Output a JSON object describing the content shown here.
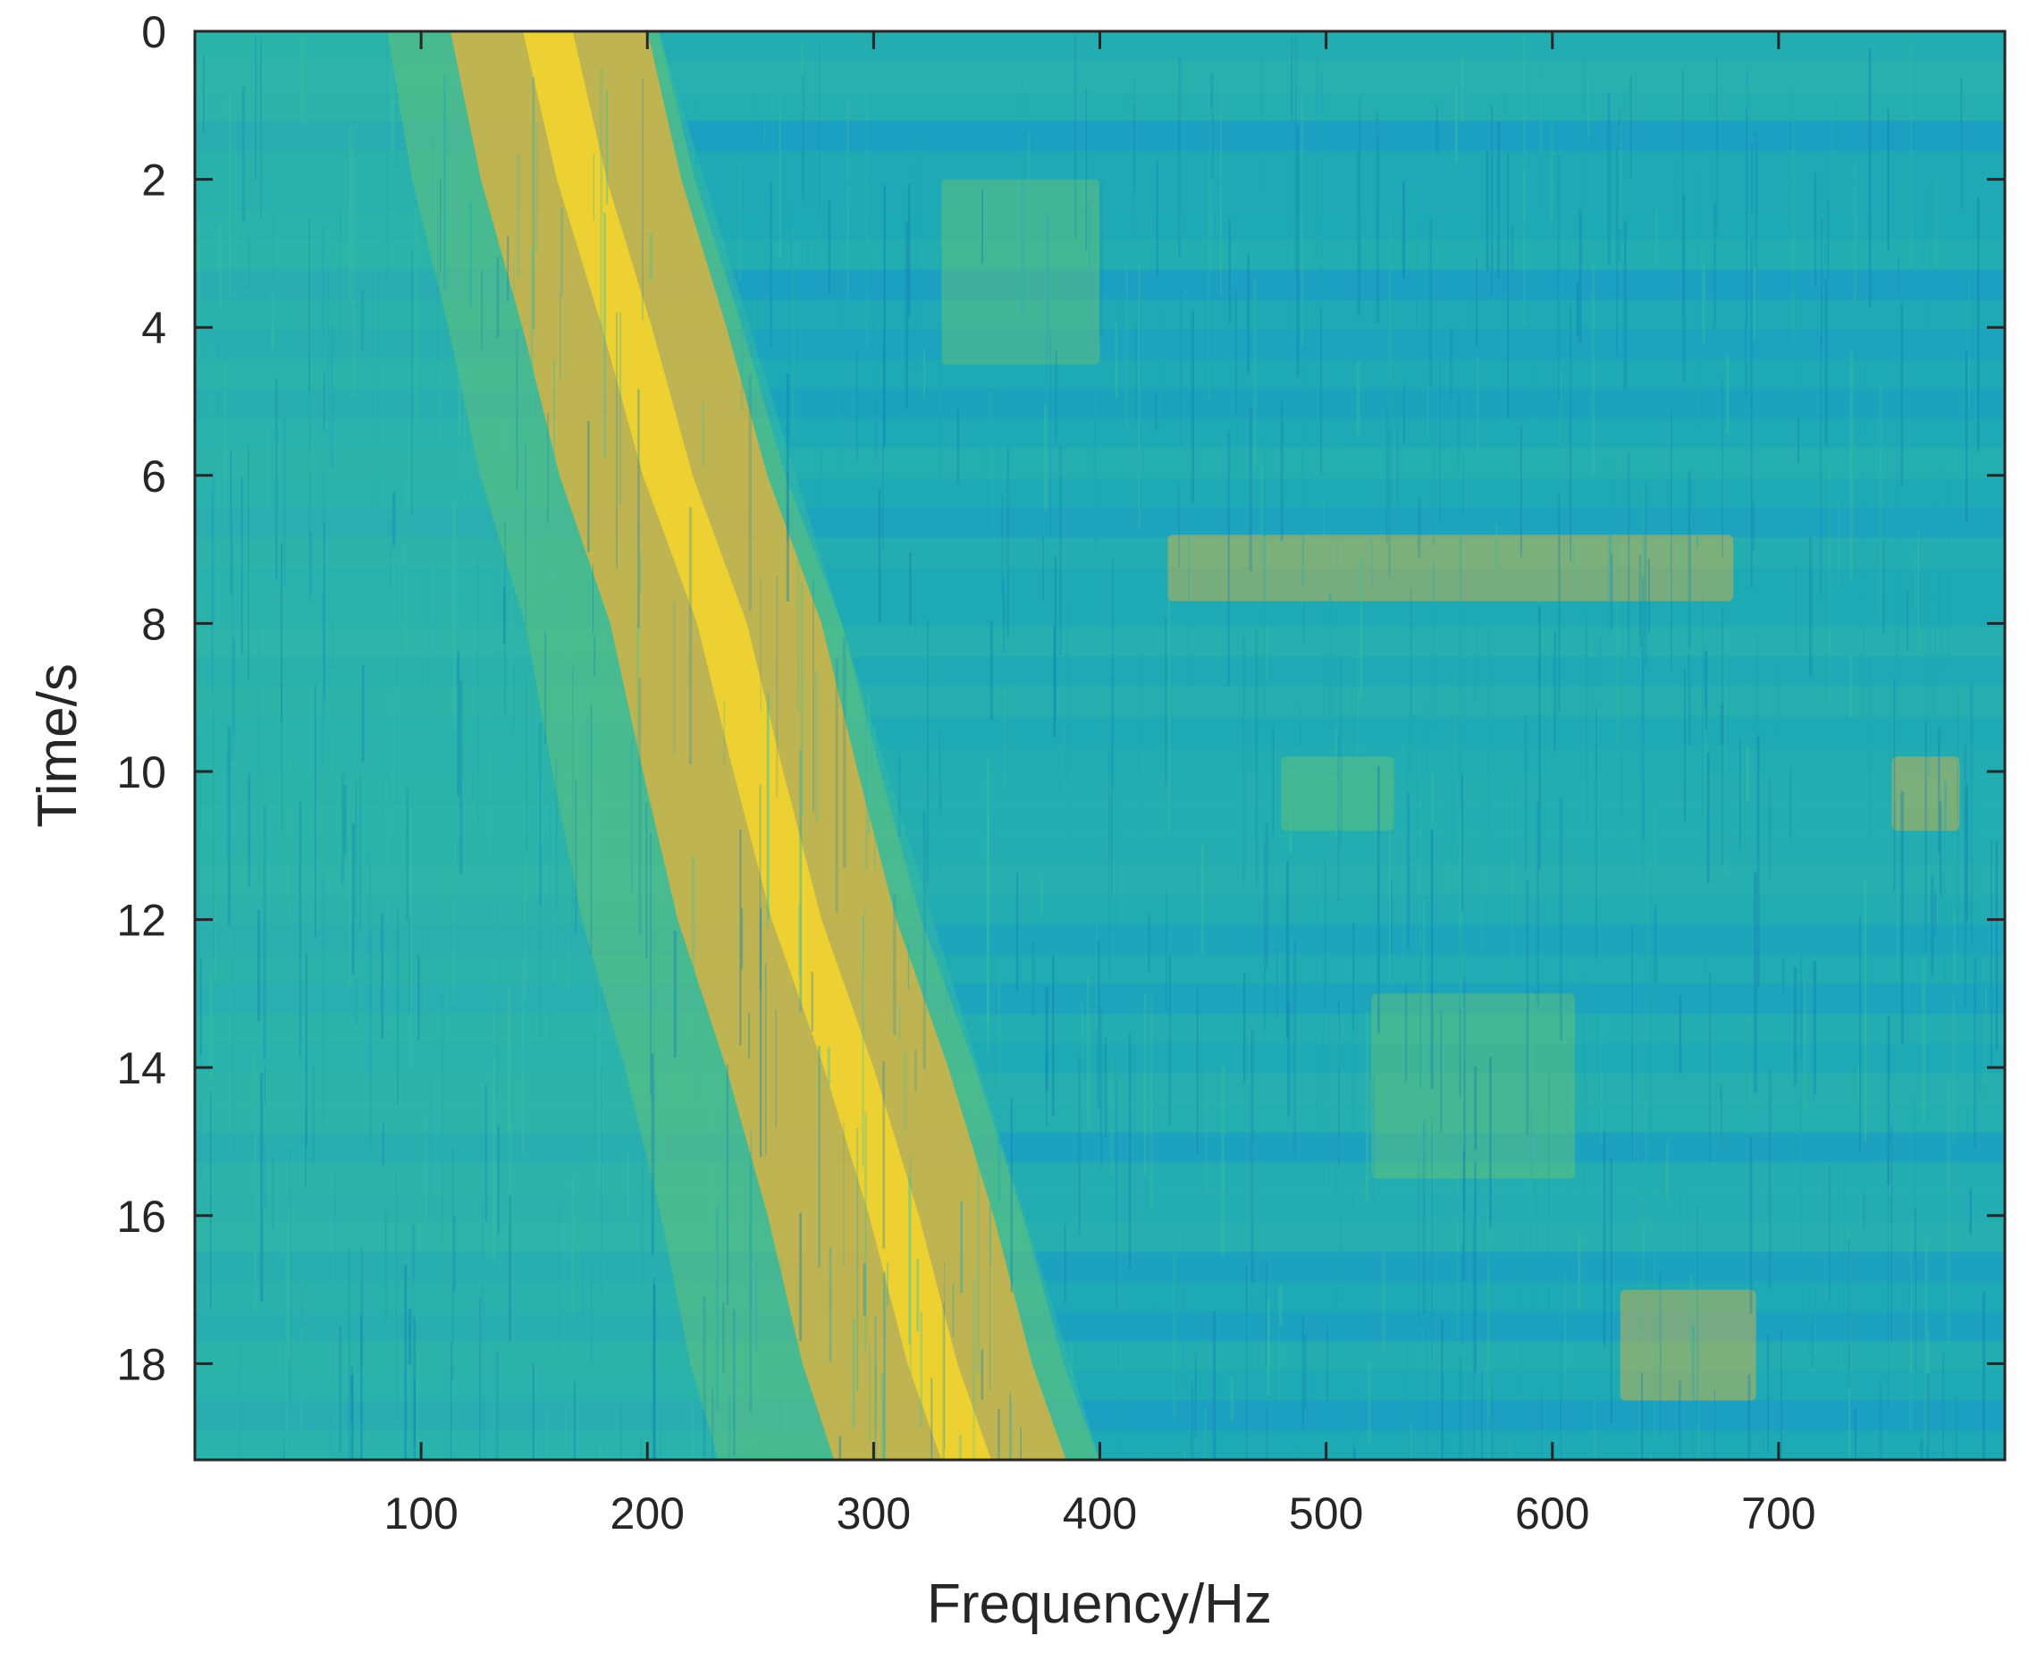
{
  "chart_data": {
    "type": "heatmap",
    "title": "",
    "xlabel": "Frequency/Hz",
    "ylabel": "Time/s",
    "xlim": [
      0,
      800
    ],
    "ylim": [
      19.3,
      0
    ],
    "y_axis_reversed": true,
    "x_ticks": [
      100,
      200,
      300,
      400,
      500,
      600,
      700
    ],
    "y_ticks": [
      0,
      2,
      4,
      6,
      8,
      10,
      12,
      14,
      16,
      18
    ],
    "colormap": "parula",
    "grid": false,
    "colorbar": false,
    "ridge": {
      "description": "dominant frequency component sweeping upward in frequency over time",
      "points": [
        {
          "time": 0,
          "frequency": 155
        },
        {
          "time": 2,
          "frequency": 170
        },
        {
          "time": 4,
          "frequency": 190
        },
        {
          "time": 6,
          "frequency": 208
        },
        {
          "time": 8,
          "frequency": 232
        },
        {
          "time": 10,
          "frequency": 248
        },
        {
          "time": 12,
          "frequency": 265
        },
        {
          "time": 14,
          "frequency": 288
        },
        {
          "time": 16,
          "frequency": 308
        },
        {
          "time": 18,
          "frequency": 325
        },
        {
          "time": 19.3,
          "frequency": 340
        }
      ],
      "upper_edge": [
        {
          "time": 0,
          "frequency": 205
        },
        {
          "time": 19.3,
          "frequency": 400
        }
      ]
    },
    "secondary_bands": [
      {
        "time_range": [
          6.8,
          7.7
        ],
        "frequency_range": [
          430,
          680
        ]
      },
      {
        "time_range": [
          9.8,
          10.8
        ],
        "frequency_range": [
          480,
          530
        ]
      },
      {
        "time_range": [
          9.8,
          10.8
        ],
        "frequency_range": [
          750,
          780
        ]
      },
      {
        "time_range": [
          13.0,
          15.5
        ],
        "frequency_range": [
          520,
          610
        ]
      },
      {
        "time_range": [
          17.0,
          18.5
        ],
        "frequency_range": [
          630,
          690
        ]
      },
      {
        "time_range": [
          2.0,
          4.5
        ],
        "frequency_range": [
          330,
          400
        ]
      }
    ],
    "colors": {
      "background": "#1eaab5",
      "low": "#1990d6",
      "mid": "#35b8a4",
      "green": "#6cc372",
      "high": "#e6b23c",
      "peak": "#f9d82a"
    }
  }
}
